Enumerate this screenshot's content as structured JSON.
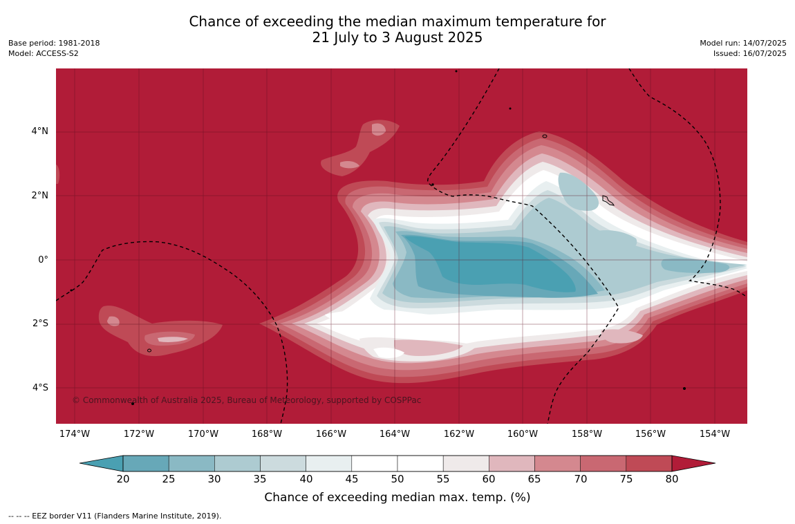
{
  "title": {
    "line1": "Chance of exceeding the median maximum temperature for",
    "line2": "21 July to 3 August 2025"
  },
  "meta_left": {
    "base_period": "Base period: 1981-2018",
    "model": "Model: ACCESS-S2"
  },
  "meta_right": {
    "model_run": "Model run: 14/07/2025",
    "issued": "Issued: 16/07/2025"
  },
  "map": {
    "lat_labels": [
      "4°N",
      "2°N",
      "0°",
      "2°S",
      "4°S"
    ],
    "lon_labels": [
      "174°W",
      "172°W",
      "170°W",
      "168°W",
      "166°W",
      "164°W",
      "162°W",
      "160°W",
      "158°W",
      "156°W",
      "154°W"
    ],
    "copyright": "© Commonwealth of Australia 2025, Bureau of Meteorology, supported by COSPPac",
    "background_color": "#b11c38"
  },
  "colorbar": {
    "ticks": [
      "20",
      "25",
      "30",
      "35",
      "40",
      "45",
      "50",
      "55",
      "60",
      "65",
      "70",
      "75",
      "80"
    ],
    "colors": [
      "#67a8b8",
      "#8ab9c4",
      "#adcbd1",
      "#ccdbde",
      "#e8eff0",
      "#ffffff",
      "#ffffff",
      "#efeaea",
      "#e0b7bd",
      "#d4888f",
      "#c96872",
      "#bf4a56"
    ],
    "low_color": "#4aa0b2",
    "high_color": "#b11c38",
    "title": "Chance of exceeding median max. temp. (%)"
  },
  "legend_note": "--  --  -- EEZ border V11 (Flanders Marine Institute, 2019)."
}
